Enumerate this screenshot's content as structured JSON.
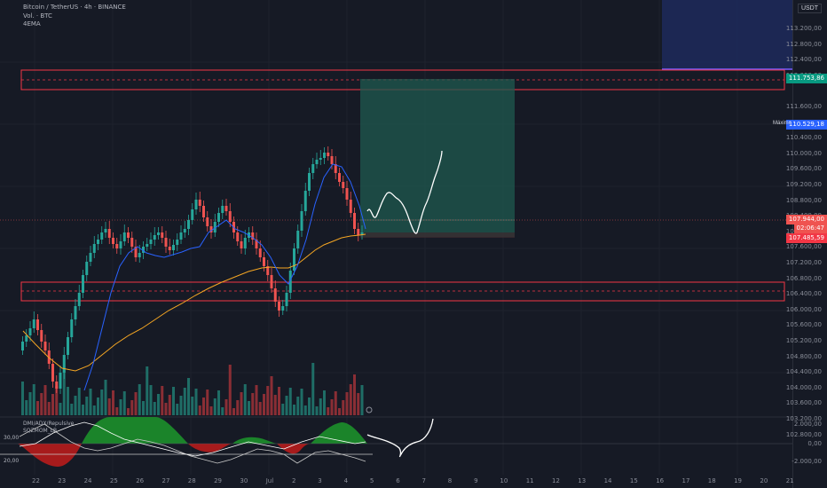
{
  "legend": {
    "symbol": "Bitcoin / TetherUS · 4h · BINANCE",
    "volume": "Vol. · BTC",
    "ema": "4EMA"
  },
  "axis": {
    "currency": "USDT",
    "price_ticks": [
      "113.200,00",
      "112.800,00",
      "112.400,00",
      "112.000,00",
      "111.600,00",
      "110.800,00",
      "110.400,00",
      "110.000,00",
      "109.600,00",
      "109.200,00",
      "108.800,00",
      "108.400,00",
      "108.000,00",
      "107.600,00",
      "107.200,00",
      "106.800,00",
      "106.400,00",
      "106.000,00",
      "105.600,00",
      "105.200,00",
      "104.800,00",
      "104.400,00",
      "104.000,00",
      "103.600,00",
      "103.200,00",
      "102.800,00"
    ],
    "tag_target": "111.753,86",
    "tag_max_label": "Máximo",
    "tag_max": "110.529,18",
    "tag_last": "107.944,00",
    "tag_countdown": "02:06:47",
    "tag_stop": "107.485,59",
    "osc_right_top": "2.000,00",
    "osc_right_mid": "0,00",
    "osc_right_bot": "-2.000,00"
  },
  "time_ticks": [
    "22",
    "23",
    "24",
    "25",
    "26",
    "27",
    "28",
    "29",
    "30",
    "Jul",
    "2",
    "3",
    "4",
    "5",
    "6",
    "7",
    "8",
    "9",
    "10",
    "11",
    "12",
    "13",
    "14",
    "15",
    "16",
    "17",
    "18",
    "19",
    "20",
    "21"
  ],
  "oscillator": {
    "name": "DMI/ADX/Repulsive",
    "sub": "SQZMOM_LB",
    "left_top": "30,00",
    "left_bot": "20,00"
  },
  "colors": {
    "background": "#161a25",
    "bull": "#26a69a",
    "bear": "#ef5350",
    "zone_border": "#f23645",
    "target_fill": "#1f5a4f",
    "ema_slow": "#f5a623",
    "ema_fast": "#2962ff"
  }
}
